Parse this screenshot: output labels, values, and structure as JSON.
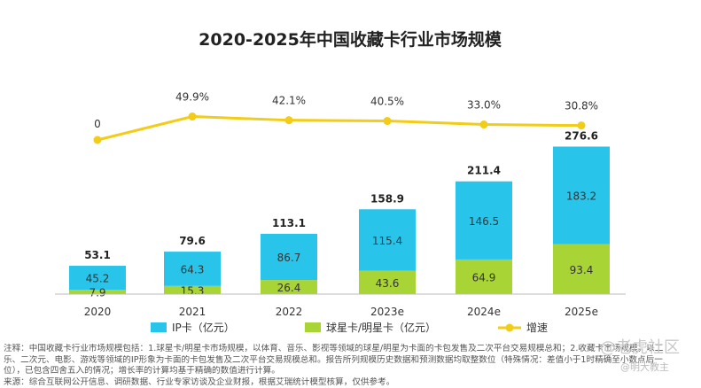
{
  "chart_data": {
    "type": "bar",
    "title": "2020-2025年中国收藏卡行业市场规模",
    "categories": [
      "2020",
      "2021",
      "2022",
      "2023e",
      "2024e",
      "2025e"
    ],
    "series": [
      {
        "name": "球星卡/明星卡（亿元）",
        "values": [
          7.9,
          15.3,
          26.4,
          43.6,
          64.9,
          93.4
        ],
        "color": "#a8d435"
      },
      {
        "name": "IP卡（亿元）",
        "values": [
          45.2,
          64.3,
          86.7,
          115.4,
          146.5,
          183.2
        ],
        "color": "#29c4ea"
      }
    ],
    "totals": [
      53.1,
      79.6,
      113.1,
      158.9,
      211.4,
      276.6
    ],
    "bar_labels": [
      [
        "7.9",
        "45.2"
      ],
      [
        "15.3",
        "64.3"
      ],
      [
        "26.4",
        "86.7"
      ],
      [
        "43.6",
        "115.4"
      ],
      [
        "64.9",
        "146.5"
      ],
      [
        "93.4",
        "183.2"
      ]
    ],
    "total_labels": [
      "53.1",
      "79.6",
      "113.1",
      "158.9",
      "211.4",
      "276.6"
    ],
    "growth": {
      "name": "增速",
      "values": [
        0,
        49.9,
        42.1,
        40.5,
        33.0,
        30.8
      ],
      "labels": [
        "0",
        "49.9%",
        "42.1%",
        "40.5%",
        "33.0%",
        "30.8%"
      ],
      "color": "#f2cc16"
    },
    "stacked": true,
    "legend_position": "bottom",
    "grid": false
  },
  "notes": {
    "line1": "注释：中国收藏卡行业市场规模包括：1.球星卡/明星卡市场规模，以体育、音乐、影视等领域的球星/明星为卡面的卡包发售及二次平台交易规模总和；2.收藏卡市场规模，以二",
    "line2": "乐、二次元、电影、游戏等领域的IP形象为卡面的卡包发售及二次平台交易规模总和。报告所列规模历史数据和预测数据均取整数位（特殊情况：差值小于1时精确至小数点后一",
    "line3": "位），已包含四舍五入的情况；增长率的计算均基于精确的数值进行计算。",
    "line4": "来源：综合互联网公开信息、调研数据、行业专家访谈及企业财报，根据艾瑞统计模型核算，仅供参考。"
  },
  "watermark": {
    "main": "@老虎社区",
    "sub": "@明大教主"
  }
}
